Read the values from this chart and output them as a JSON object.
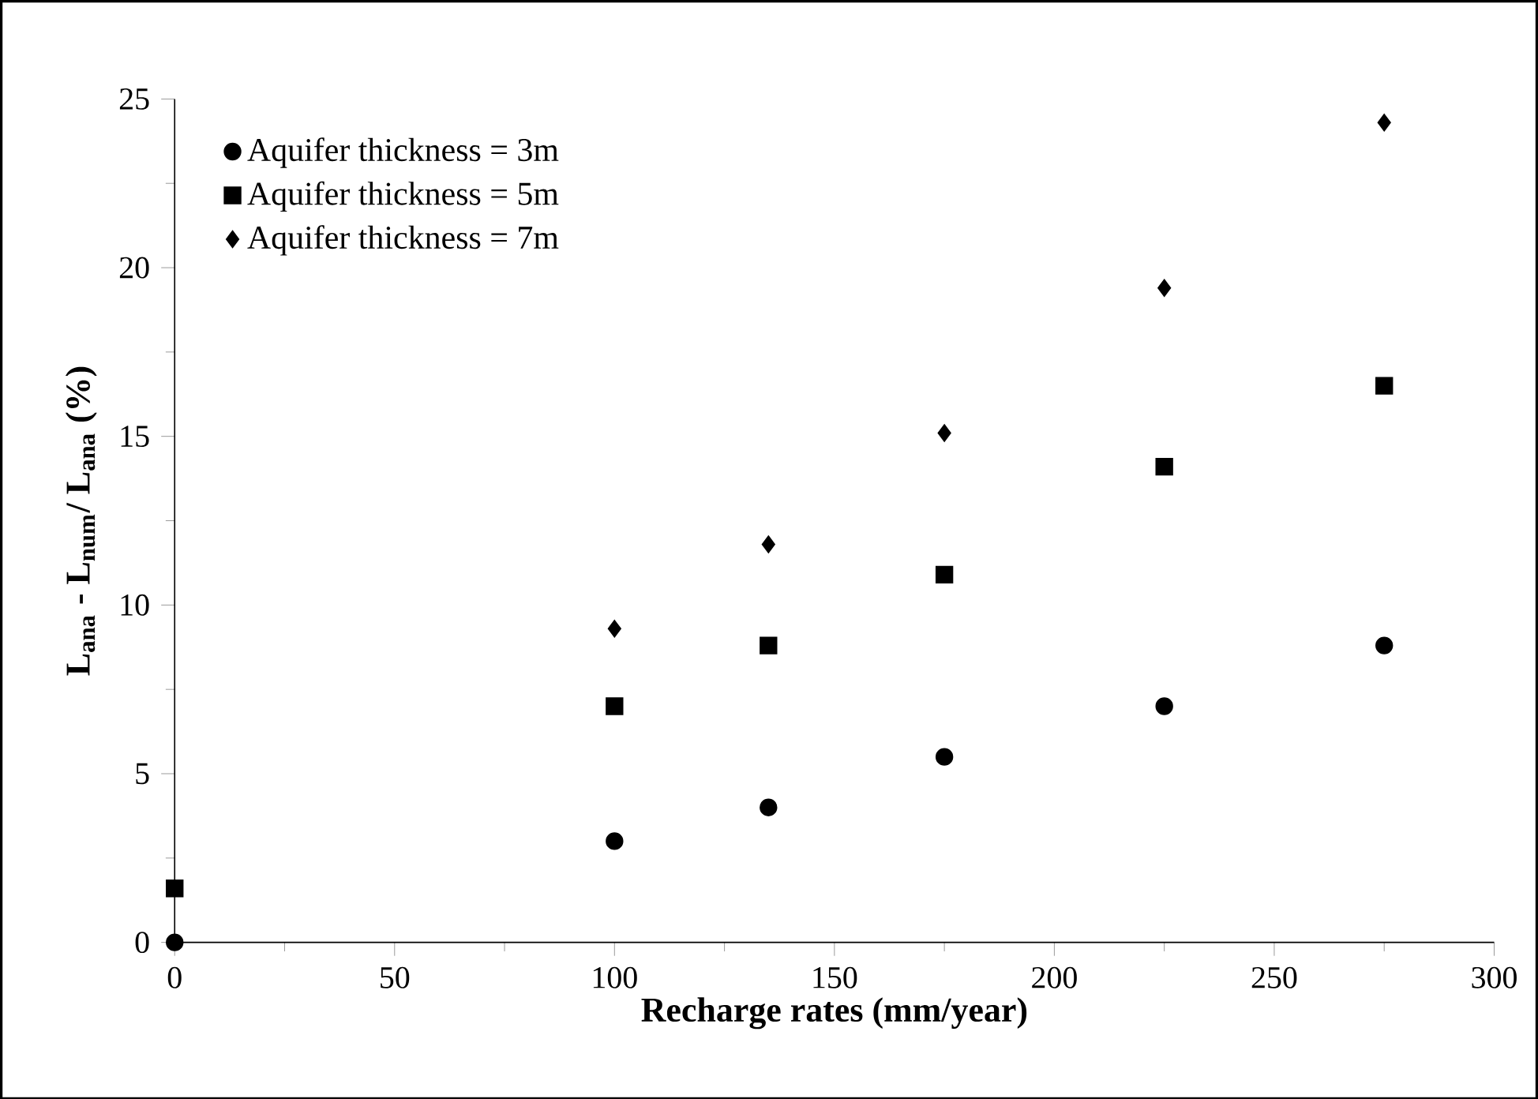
{
  "chart_data": {
    "type": "scatter",
    "xlabel": "Recharge rates (mm/year)",
    "ylabel": "L$_{ana}$ - L$_{num}$/ L$_{ana}$ (%)",
    "xlim": [
      0,
      300
    ],
    "xticks": [
      0,
      50,
      100,
      150,
      200,
      250,
      300
    ],
    "ylim": [
      0,
      25
    ],
    "yticks": [
      0,
      5,
      10,
      15,
      20,
      25
    ],
    "legend": "top left",
    "grid": false,
    "series": [
      {
        "name": "Aquifer thickness = 3m",
        "color": "#000000",
        "marker": "circle",
        "x": [
          0,
          100,
          135,
          175,
          225,
          275
        ],
        "values": [
          0,
          3.0,
          4.0,
          5.5,
          7.0,
          8.8
        ]
      },
      {
        "name": "Aquifer thickness = 5m",
        "color": "#000000",
        "marker": "square",
        "x": [
          0,
          100,
          135,
          175,
          225,
          275
        ],
        "values": [
          1.6,
          7.0,
          8.8,
          10.9,
          14.1,
          16.5
        ]
      },
      {
        "name": "Aquifer thickness = 7m",
        "color": "#000000",
        "marker": "diamond",
        "x": [
          100,
          135,
          175,
          225,
          275
        ],
        "values": [
          9.3,
          11.8,
          15.1,
          19.4,
          24.3
        ]
      }
    ]
  }
}
